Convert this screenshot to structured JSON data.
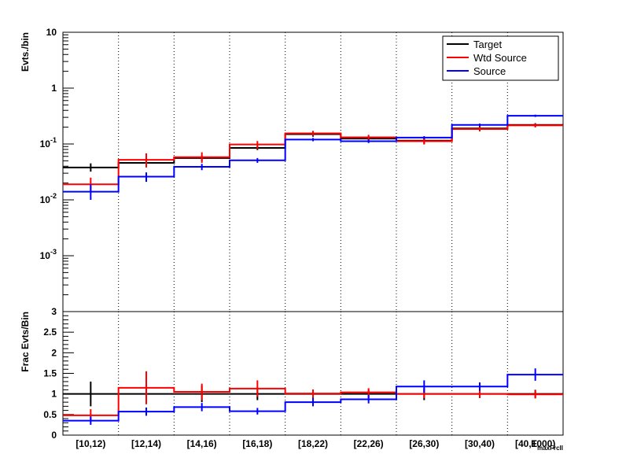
{
  "chart_data": [
    {
      "type": "step",
      "ylabel": "Evts./bin",
      "xlabel": "",
      "yscale": "log",
      "ylim": [
        0.0001,
        10
      ],
      "y_ticks": [
        {
          "value": 10,
          "label": "10"
        },
        {
          "value": 1,
          "label": "1"
        },
        {
          "value": 0.1,
          "label": "10",
          "exp": "-1"
        },
        {
          "value": 0.01,
          "label": "10",
          "exp": "-2"
        },
        {
          "value": 0.001,
          "label": "10",
          "exp": "-3"
        }
      ],
      "categories": [
        "[10,12)",
        "[12,14)",
        "[14,16)",
        "[16,18)",
        "[18,22)",
        "[22,26)",
        "[26,30)",
        "[30,40)",
        "[40,1000)"
      ],
      "grid": {
        "vertical": "dotted",
        "horizontal": false
      },
      "legend_position": "top-right",
      "series": [
        {
          "name": "Target",
          "color": "#000000",
          "values": [
            0.038,
            0.046,
            0.056,
            0.085,
            0.15,
            0.125,
            0.115,
            0.19,
            0.22
          ],
          "err_lo": [
            0.032,
            0.041,
            0.05,
            0.078,
            0.135,
            0.113,
            0.1,
            0.172,
            0.205
          ],
          "err_hi": [
            0.045,
            0.052,
            0.062,
            0.093,
            0.166,
            0.138,
            0.131,
            0.208,
            0.236
          ]
        },
        {
          "name": "Wtd Source",
          "color": "#ff0000",
          "values": [
            0.019,
            0.052,
            0.058,
            0.098,
            0.155,
            0.132,
            0.112,
            0.185,
            0.215
          ],
          "err_lo": [
            0.014,
            0.038,
            0.046,
            0.082,
            0.14,
            0.118,
            0.098,
            0.168,
            0.198
          ],
          "err_hi": [
            0.025,
            0.068,
            0.071,
            0.113,
            0.172,
            0.146,
            0.126,
            0.203,
            0.233
          ]
        },
        {
          "name": "Source",
          "color": "#0000ff",
          "values": [
            0.014,
            0.026,
            0.039,
            0.051,
            0.12,
            0.112,
            0.13,
            0.22,
            0.32
          ],
          "err_lo": [
            0.01,
            0.021,
            0.034,
            0.046,
            0.112,
            0.104,
            0.122,
            0.208,
            0.305
          ],
          "err_hi": [
            0.019,
            0.031,
            0.044,
            0.056,
            0.128,
            0.12,
            0.138,
            0.232,
            0.335
          ]
        }
      ]
    },
    {
      "type": "step",
      "ylabel": "Frac Evts/Bin",
      "xlabel": "E",
      "xlabel_sub": "maxFrcII",
      "ylim": [
        0,
        3
      ],
      "y_ticks": [
        {
          "value": 0,
          "label": "0"
        },
        {
          "value": 0.5,
          "label": "0.5"
        },
        {
          "value": 1,
          "label": "1"
        },
        {
          "value": 1.5,
          "label": "1.5"
        },
        {
          "value": 2,
          "label": "2"
        },
        {
          "value": 2.5,
          "label": "2.5"
        },
        {
          "value": 3,
          "label": "3"
        }
      ],
      "categories": [
        "[10,12)",
        "[12,14)",
        "[14,16)",
        "[16,18)",
        "[18,22)",
        "[22,26)",
        "[26,30)",
        "[30,40)",
        "[40,1000)"
      ],
      "series": [
        {
          "name": "Target",
          "color": "#000000",
          "values": [
            1,
            1,
            1,
            1,
            1,
            1,
            1,
            1,
            1
          ],
          "err": [
            0.3,
            0.2,
            0.2,
            0.15,
            0.1,
            0.1,
            0.15,
            0.1,
            0.1
          ]
        },
        {
          "name": "Wtd Source",
          "color": "#ff0000",
          "values": [
            0.48,
            1.15,
            1.05,
            1.13,
            1.01,
            1.04,
            1.0,
            1.0,
            0.99
          ],
          "err": [
            0.15,
            0.4,
            0.2,
            0.2,
            0.1,
            0.1,
            0.1,
            0.1,
            0.1
          ]
        },
        {
          "name": "Source",
          "color": "#0000ff",
          "values": [
            0.35,
            0.57,
            0.68,
            0.58,
            0.8,
            0.87,
            1.18,
            1.18,
            1.47
          ],
          "err": [
            0.1,
            0.1,
            0.1,
            0.08,
            0.1,
            0.1,
            0.15,
            0.1,
            0.15
          ]
        }
      ]
    }
  ]
}
